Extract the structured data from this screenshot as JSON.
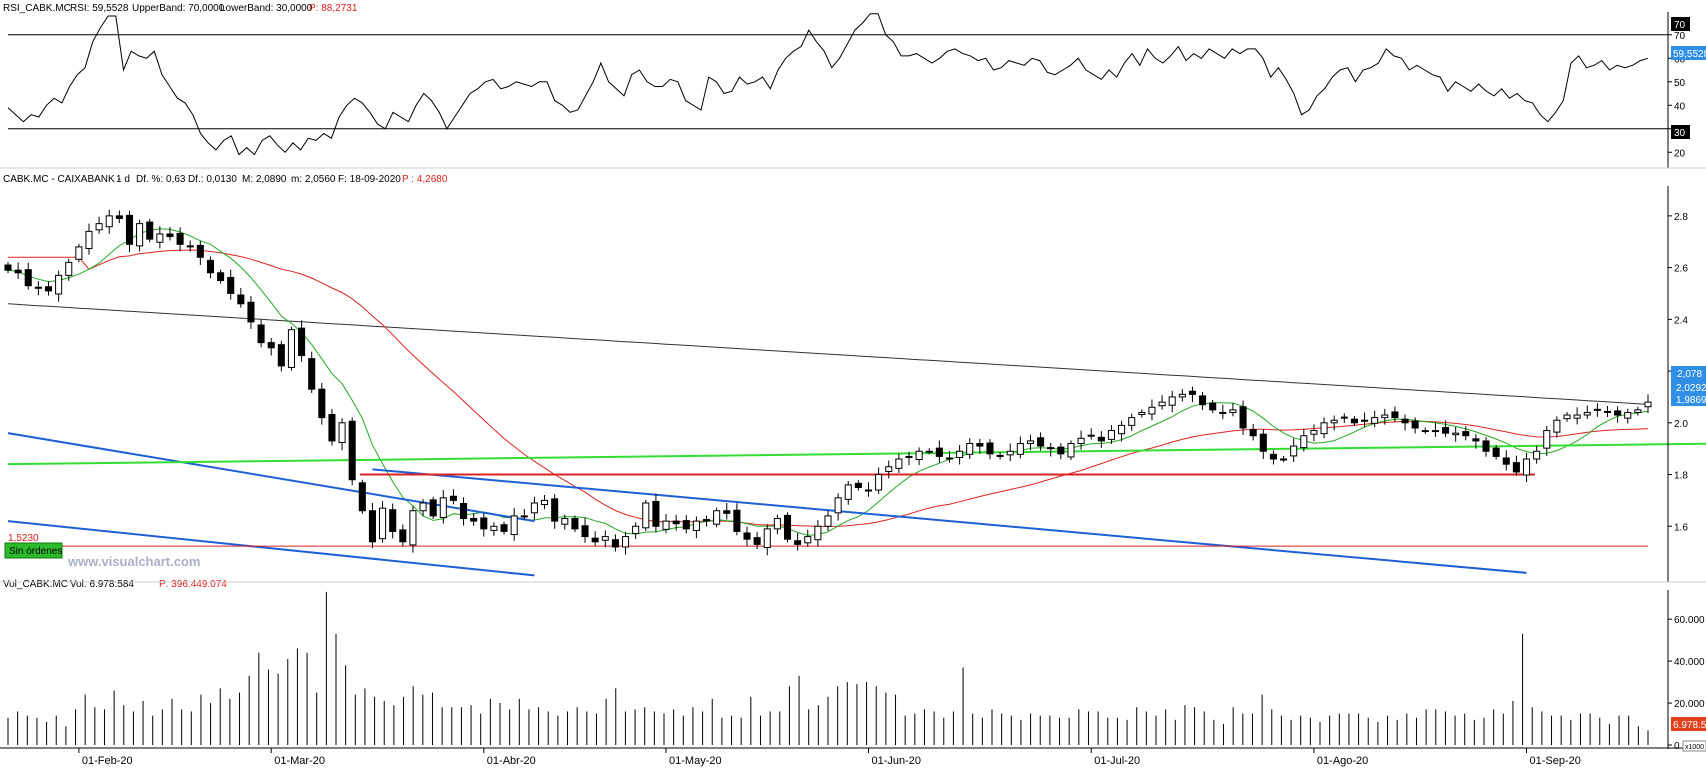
{
  "rsi_panel": {
    "header": {
      "name": "RSI_CABK.MC",
      "value": "RSI: 59,5528",
      "upper": "UpperBand: 70,0000",
      "lower": "LowerBand: 30,0000",
      "p": "P: 88,2731"
    },
    "last_value_badge": "59,5528",
    "upper_badge": "70",
    "lower_badge": "30"
  },
  "price_panel": {
    "header": {
      "symbol": "CABK.MC - CAIXABANK -",
      "period": "1 d",
      "dif_pct": "Df. %: 0,63",
      "dif": "Df.: 0,0130",
      "max": "M: 2,0890",
      "min": "m: 2,0560",
      "date": "F: 18-09-2020",
      "p": "P : 4,2680"
    },
    "badges": {
      "last": "2,078",
      "ma_short": "2,0292",
      "ma_long": "1,9869"
    },
    "support_label": "1,5230",
    "orders_button": "Sin órdenes",
    "watermark": "www.visualchart.com"
  },
  "volume_panel": {
    "header": {
      "name": "Vol_CABK.MC",
      "vol": "Vol: 6.978.584",
      "p": "P: 396.449.074"
    },
    "last_badge": "6.978.5",
    "multiplier": "x1000"
  },
  "colors": {
    "up_body": "#ffffff",
    "down_body": "#000000",
    "ma_short": "#22aa22",
    "ma_mid": "#dd2222",
    "ma_long": "#333333",
    "channel": "#1e5fd6",
    "support": "#dd2222",
    "trend_green": "#33dd33",
    "badge_blue": "#2f8fe6",
    "badge_red": "#e0411c"
  },
  "chart_data": [
    {
      "type": "line",
      "name": "RSI",
      "yticks": [
        20,
        30,
        40,
        50,
        60,
        70
      ],
      "ylim": [
        15,
        78
      ],
      "bands": [
        70,
        30
      ],
      "values": [
        39,
        36,
        33,
        36,
        35,
        40,
        43,
        41,
        48,
        53,
        56,
        67,
        73,
        78,
        78,
        55,
        63,
        61,
        60,
        63,
        53,
        48,
        43,
        41,
        36,
        28,
        24,
        21,
        25,
        27,
        19,
        22,
        19,
        25,
        27,
        23,
        20,
        24,
        21,
        26,
        25,
        28,
        26,
        35,
        40,
        43,
        41,
        37,
        32,
        30,
        37,
        35,
        33,
        40,
        45,
        42,
        37,
        30,
        35,
        40,
        45,
        47,
        50,
        51,
        47,
        48,
        50,
        49,
        48,
        50,
        50,
        42,
        40,
        37,
        38,
        44,
        50,
        58,
        50,
        47,
        44,
        53,
        55,
        50,
        48,
        48,
        51,
        50,
        42,
        40,
        38,
        52,
        50,
        45,
        46,
        52,
        49,
        50,
        52,
        47,
        55,
        60,
        63,
        65,
        72,
        67,
        63,
        56,
        60,
        66,
        72,
        75,
        79,
        79,
        70,
        67,
        61,
        61,
        62,
        60,
        58,
        60,
        63,
        64,
        62,
        61,
        59,
        60,
        55,
        56,
        59,
        58,
        57,
        60,
        59,
        54,
        53,
        55,
        57,
        60,
        55,
        53,
        51,
        55,
        52,
        58,
        62,
        57,
        64,
        60,
        58,
        61,
        65,
        59,
        62,
        60,
        64,
        62,
        60,
        64,
        62,
        64,
        64,
        60,
        52,
        56,
        51,
        45,
        36,
        38,
        44,
        47,
        52,
        55,
        56,
        50,
        55,
        56,
        58,
        64,
        61,
        60,
        55,
        57,
        55,
        53,
        52,
        46,
        50,
        48,
        46,
        49,
        46,
        44,
        47,
        43,
        45,
        42,
        41,
        36,
        33,
        37,
        42,
        58,
        61,
        56,
        57,
        59,
        55,
        57,
        56,
        57,
        59,
        60
      ],
      "last": 59.5528
    },
    {
      "type": "candlestick",
      "name": "CABK.MC",
      "yticks": [
        1.6,
        1.8,
        2.0,
        2.2,
        2.4,
        2.6,
        2.8
      ],
      "ylim": [
        1.4,
        2.9
      ],
      "x_labels": [
        "01-Feb-20",
        "01-Mar-20",
        "01-Abr-20",
        "01-May-20",
        "01-Jun-20",
        "01-Jul-20",
        "01-Ago-20",
        "01-Sep-20"
      ],
      "x_label_index": [
        7,
        26,
        47,
        65,
        85,
        107,
        129,
        150
      ],
      "closes": [
        2.59,
        2.58,
        2.53,
        2.52,
        2.51,
        2.57,
        2.62,
        2.68,
        2.74,
        2.77,
        2.8,
        2.79,
        2.69,
        2.77,
        2.71,
        2.73,
        2.72,
        2.69,
        2.68,
        2.64,
        2.58,
        2.55,
        2.5,
        2.46,
        2.39,
        2.31,
        2.29,
        2.22,
        2.36,
        2.26,
        2.13,
        2.02,
        1.93,
        2.0,
        1.78,
        1.66,
        1.54,
        1.67,
        1.58,
        1.54,
        1.66,
        1.69,
        1.64,
        1.71,
        1.7,
        1.63,
        1.62,
        1.59,
        1.6,
        1.58,
        1.64,
        1.64,
        1.69,
        1.7,
        1.62,
        1.63,
        1.59,
        1.56,
        1.54,
        1.56,
        1.52,
        1.56,
        1.6,
        1.69,
        1.6,
        1.62,
        1.61,
        1.59,
        1.62,
        1.62,
        1.66,
        1.65,
        1.58,
        1.55,
        1.53,
        1.59,
        1.63,
        1.55,
        1.53,
        1.56,
        1.6,
        1.64,
        1.71,
        1.76,
        1.75,
        1.74,
        1.8,
        1.83,
        1.86,
        1.87,
        1.89,
        1.89,
        1.87,
        1.86,
        1.89,
        1.92,
        1.91,
        1.88,
        1.87,
        1.89,
        1.92,
        1.93,
        1.91,
        1.9,
        1.88,
        1.92,
        1.94,
        1.95,
        1.93,
        1.97,
        1.99,
        2.02,
        2.04,
        2.06,
        2.08,
        2.1,
        2.11,
        2.11,
        2.07,
        2.05,
        2.04,
        2.05,
        1.98,
        1.95,
        1.89,
        1.86,
        1.86,
        1.91,
        1.95,
        1.97,
        2.0,
        2.01,
        2.02,
        2.0,
        2.01,
        2.02,
        2.03,
        2.02,
        2.0,
        1.98,
        1.97,
        1.97,
        1.96,
        1.96,
        1.95,
        1.93,
        1.89,
        1.87,
        1.84,
        1.81,
        1.86,
        1.89,
        1.97,
        2.01,
        2.03,
        2.03,
        2.04,
        2.05,
        2.04,
        2.03,
        2.04,
        2.05,
        2.08
      ],
      "series": [
        {
          "name": "MA short",
          "values": []
        },
        {
          "name": "MA mid",
          "values": []
        },
        {
          "name": "MA long",
          "values": []
        }
      ],
      "channel_lines": [
        {
          "from": [
            0,
            1.96
          ],
          "to": [
            52,
            1.62
          ]
        },
        {
          "from": [
            0,
            1.62
          ],
          "to": [
            52,
            1.41
          ]
        },
        {
          "from": [
            36,
            1.82
          ],
          "to": [
            150,
            1.42
          ]
        }
      ],
      "horizontal_lines": [
        1.523,
        1.8
      ],
      "trend_green": {
        "from": [
          0,
          1.84
        ],
        "to": [
          170,
          1.92
        ]
      },
      "last": 2.078
    },
    {
      "type": "bar",
      "name": "Volume",
      "yticks": [
        0,
        20000,
        40000,
        60000
      ],
      "ylim": [
        0,
        72000
      ],
      "unit": "x1000",
      "values": [
        13000,
        16000,
        14000,
        13000,
        11000,
        14000,
        9000,
        17000,
        24000,
        18000,
        17000,
        26000,
        19000,
        16000,
        21000,
        14000,
        17000,
        22000,
        17000,
        16000,
        24000,
        20000,
        27000,
        22000,
        25000,
        33000,
        44000,
        36000,
        34000,
        41000,
        46000,
        44000,
        25000,
        73000,
        53000,
        38000,
        24000,
        27000,
        23000,
        21000,
        19000,
        23000,
        28000,
        24000,
        25000,
        18000,
        18000,
        18000,
        19000,
        15000,
        22000,
        20000,
        17000,
        22000,
        17000,
        18000,
        16000,
        14000,
        16000,
        18000,
        16000,
        15000,
        22000,
        27000,
        16000,
        17000,
        18000,
        16000,
        15000,
        17000,
        14000,
        18000,
        16000,
        22000,
        13000,
        14000,
        13000,
        23000,
        14000,
        16000,
        16000,
        28000,
        33000,
        17000,
        19000,
        23000,
        28000,
        30000,
        29000,
        30000,
        28000,
        25000,
        24000,
        14000,
        15000,
        17000,
        16000,
        13000,
        16000,
        37000,
        15000,
        13000,
        17000,
        15000,
        14000,
        12000,
        15000,
        14000,
        14000,
        13000,
        13000,
        17000,
        16000,
        16000,
        13000,
        13000,
        12000,
        18000,
        16000,
        14000,
        17000,
        12000,
        19000,
        18000,
        16000,
        12000,
        10000,
        18000,
        15000,
        15000,
        24000,
        17000,
        14000,
        12000,
        14000,
        13000,
        11000,
        14000,
        15000,
        15000,
        15000,
        13000,
        11000,
        14000,
        12000,
        15000,
        13000,
        17000,
        17000,
        16000,
        14000,
        15000,
        12000,
        13000,
        17000,
        15000,
        21000,
        53000,
        18000,
        16000,
        14000,
        14000,
        12000,
        15000,
        15000,
        13000,
        10000,
        14000,
        14000,
        9000,
        7000
      ]
    }
  ]
}
